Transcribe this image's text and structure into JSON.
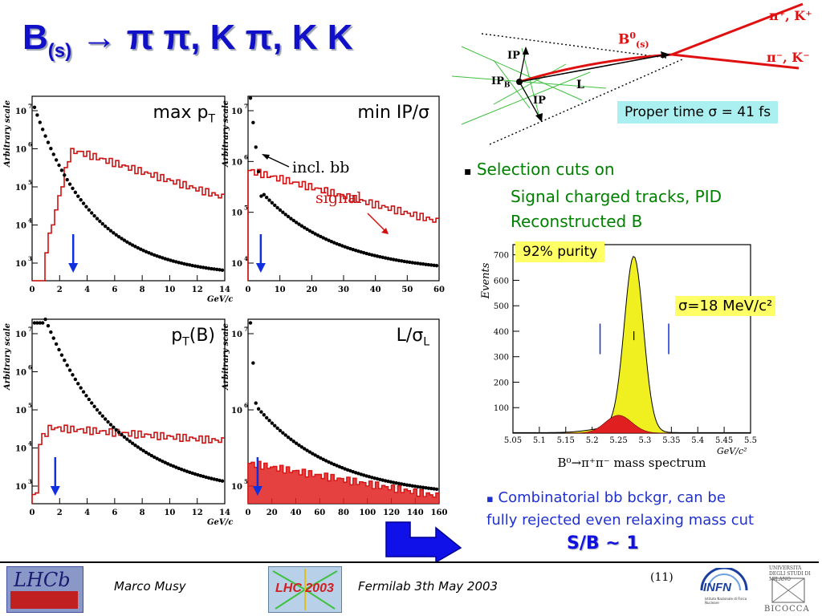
{
  "title": {
    "b": "B",
    "sub": "(s)",
    "arrow": "→",
    "rest": "π π, K π, K K"
  },
  "plots": [
    {
      "label_main": "max p",
      "label_sub": "T",
      "label_tail": "",
      "ylabel": "Arbitrary scale",
      "xlabel": "GeV/c",
      "x_ticks": [
        "0",
        "2",
        "4",
        "6",
        "8",
        "10",
        "12",
        "14"
      ],
      "y_ticks": [
        "10",
        "10",
        "10",
        "10",
        "10"
      ],
      "y_exps": [
        "7",
        "6",
        "5",
        "4",
        "3"
      ]
    },
    {
      "label_main": "min IP/σ",
      "label_sub": "",
      "label_tail": "",
      "ylabel": "Arbitrary scale",
      "xlabel": "",
      "x_ticks": [
        "0",
        "10",
        "20",
        "30",
        "40",
        "50",
        "60"
      ],
      "y_ticks": [
        "10",
        "10",
        "10",
        "10"
      ],
      "y_exps": [
        "7",
        "6",
        "5",
        "4"
      ]
    },
    {
      "label_main": "p",
      "label_sub": "T",
      "label_tail": "(B)",
      "ylabel": "Arbitrary scale",
      "xlabel": "GeV/c",
      "x_ticks": [
        "0",
        "2",
        "4",
        "6",
        "8",
        "10",
        "12",
        "14"
      ],
      "y_ticks": [
        "10",
        "10",
        "10",
        "10",
        "10"
      ],
      "y_exps": [
        "7",
        "6",
        "5",
        "4",
        "3"
      ]
    },
    {
      "label_main": "L/σ",
      "label_sub": "L",
      "label_tail": "",
      "ylabel": "Arbitrary scale",
      "xlabel": "",
      "x_ticks": [
        "0",
        "20",
        "40",
        "60",
        "80",
        "100",
        "120",
        "140",
        "160"
      ],
      "y_ticks": [
        "10",
        "10",
        "10"
      ],
      "y_exps": [
        "7",
        "6",
        "5"
      ]
    }
  ],
  "annotations": {
    "incl": "incl. bb",
    "signal": "signal"
  },
  "diagram": {
    "b0": "B",
    "b0_sup": "0",
    "b0_sub": "(s)",
    "tracks_top": "π⁺, K⁺",
    "tracks_bot": "π⁻, K⁻",
    "ip_top": "IP",
    "ip_b": "IP",
    "ip_b_sub": "B",
    "ip_bot": "IP",
    "l": "L"
  },
  "proper_time": "Proper time σ = 41 fs",
  "selection": {
    "bullet": "▪",
    "line1": "Selection cuts on",
    "line2": "Signal charged tracks, PID",
    "line3": "Reconstructed B"
  },
  "mass_plot": {
    "purity": "92% purity",
    "sigma": "σ=18 MeV/c²",
    "ylabel": "Events",
    "xlabel": "B⁰→π⁺π⁻ mass spectrum",
    "xunit": "GeV/c²",
    "x_ticks": [
      "5.05",
      "5.1",
      "5.15",
      "5.2",
      "5.25",
      "5.3",
      "5.35",
      "5.4",
      "5.45",
      "5.5"
    ],
    "y_ticks": [
      "100",
      "200",
      "300",
      "400",
      "500",
      "600",
      "700"
    ]
  },
  "combinatorial": {
    "bullet": "▪",
    "line1": "Combinatorial bb bckgr, can be",
    "line2": "fully rejected even relaxing mass cut"
  },
  "sb": "S/B ~ 1",
  "footer": {
    "author": "Marco Musy",
    "event": "Fermilab 3th May 2003",
    "page": "(11)",
    "lhcb": "LHCb",
    "lhc2003": "LHC 2003",
    "infn": "INFN",
    "infn_sub": "Istituto Nazionale di Fisica Nucleare",
    "univ": "UNIVERSITÀ DEGLI STUDI DI MILANO",
    "bicocca": "BICOCCA"
  },
  "colors": {
    "title": "#1010c8",
    "signal": "#d01010",
    "bg": "#000000",
    "green": "#008000",
    "blue": "#2030d0",
    "yellow": "#f0f020",
    "purity_bg": "#ffff66",
    "proper_bg": "#aaf0f0"
  }
}
